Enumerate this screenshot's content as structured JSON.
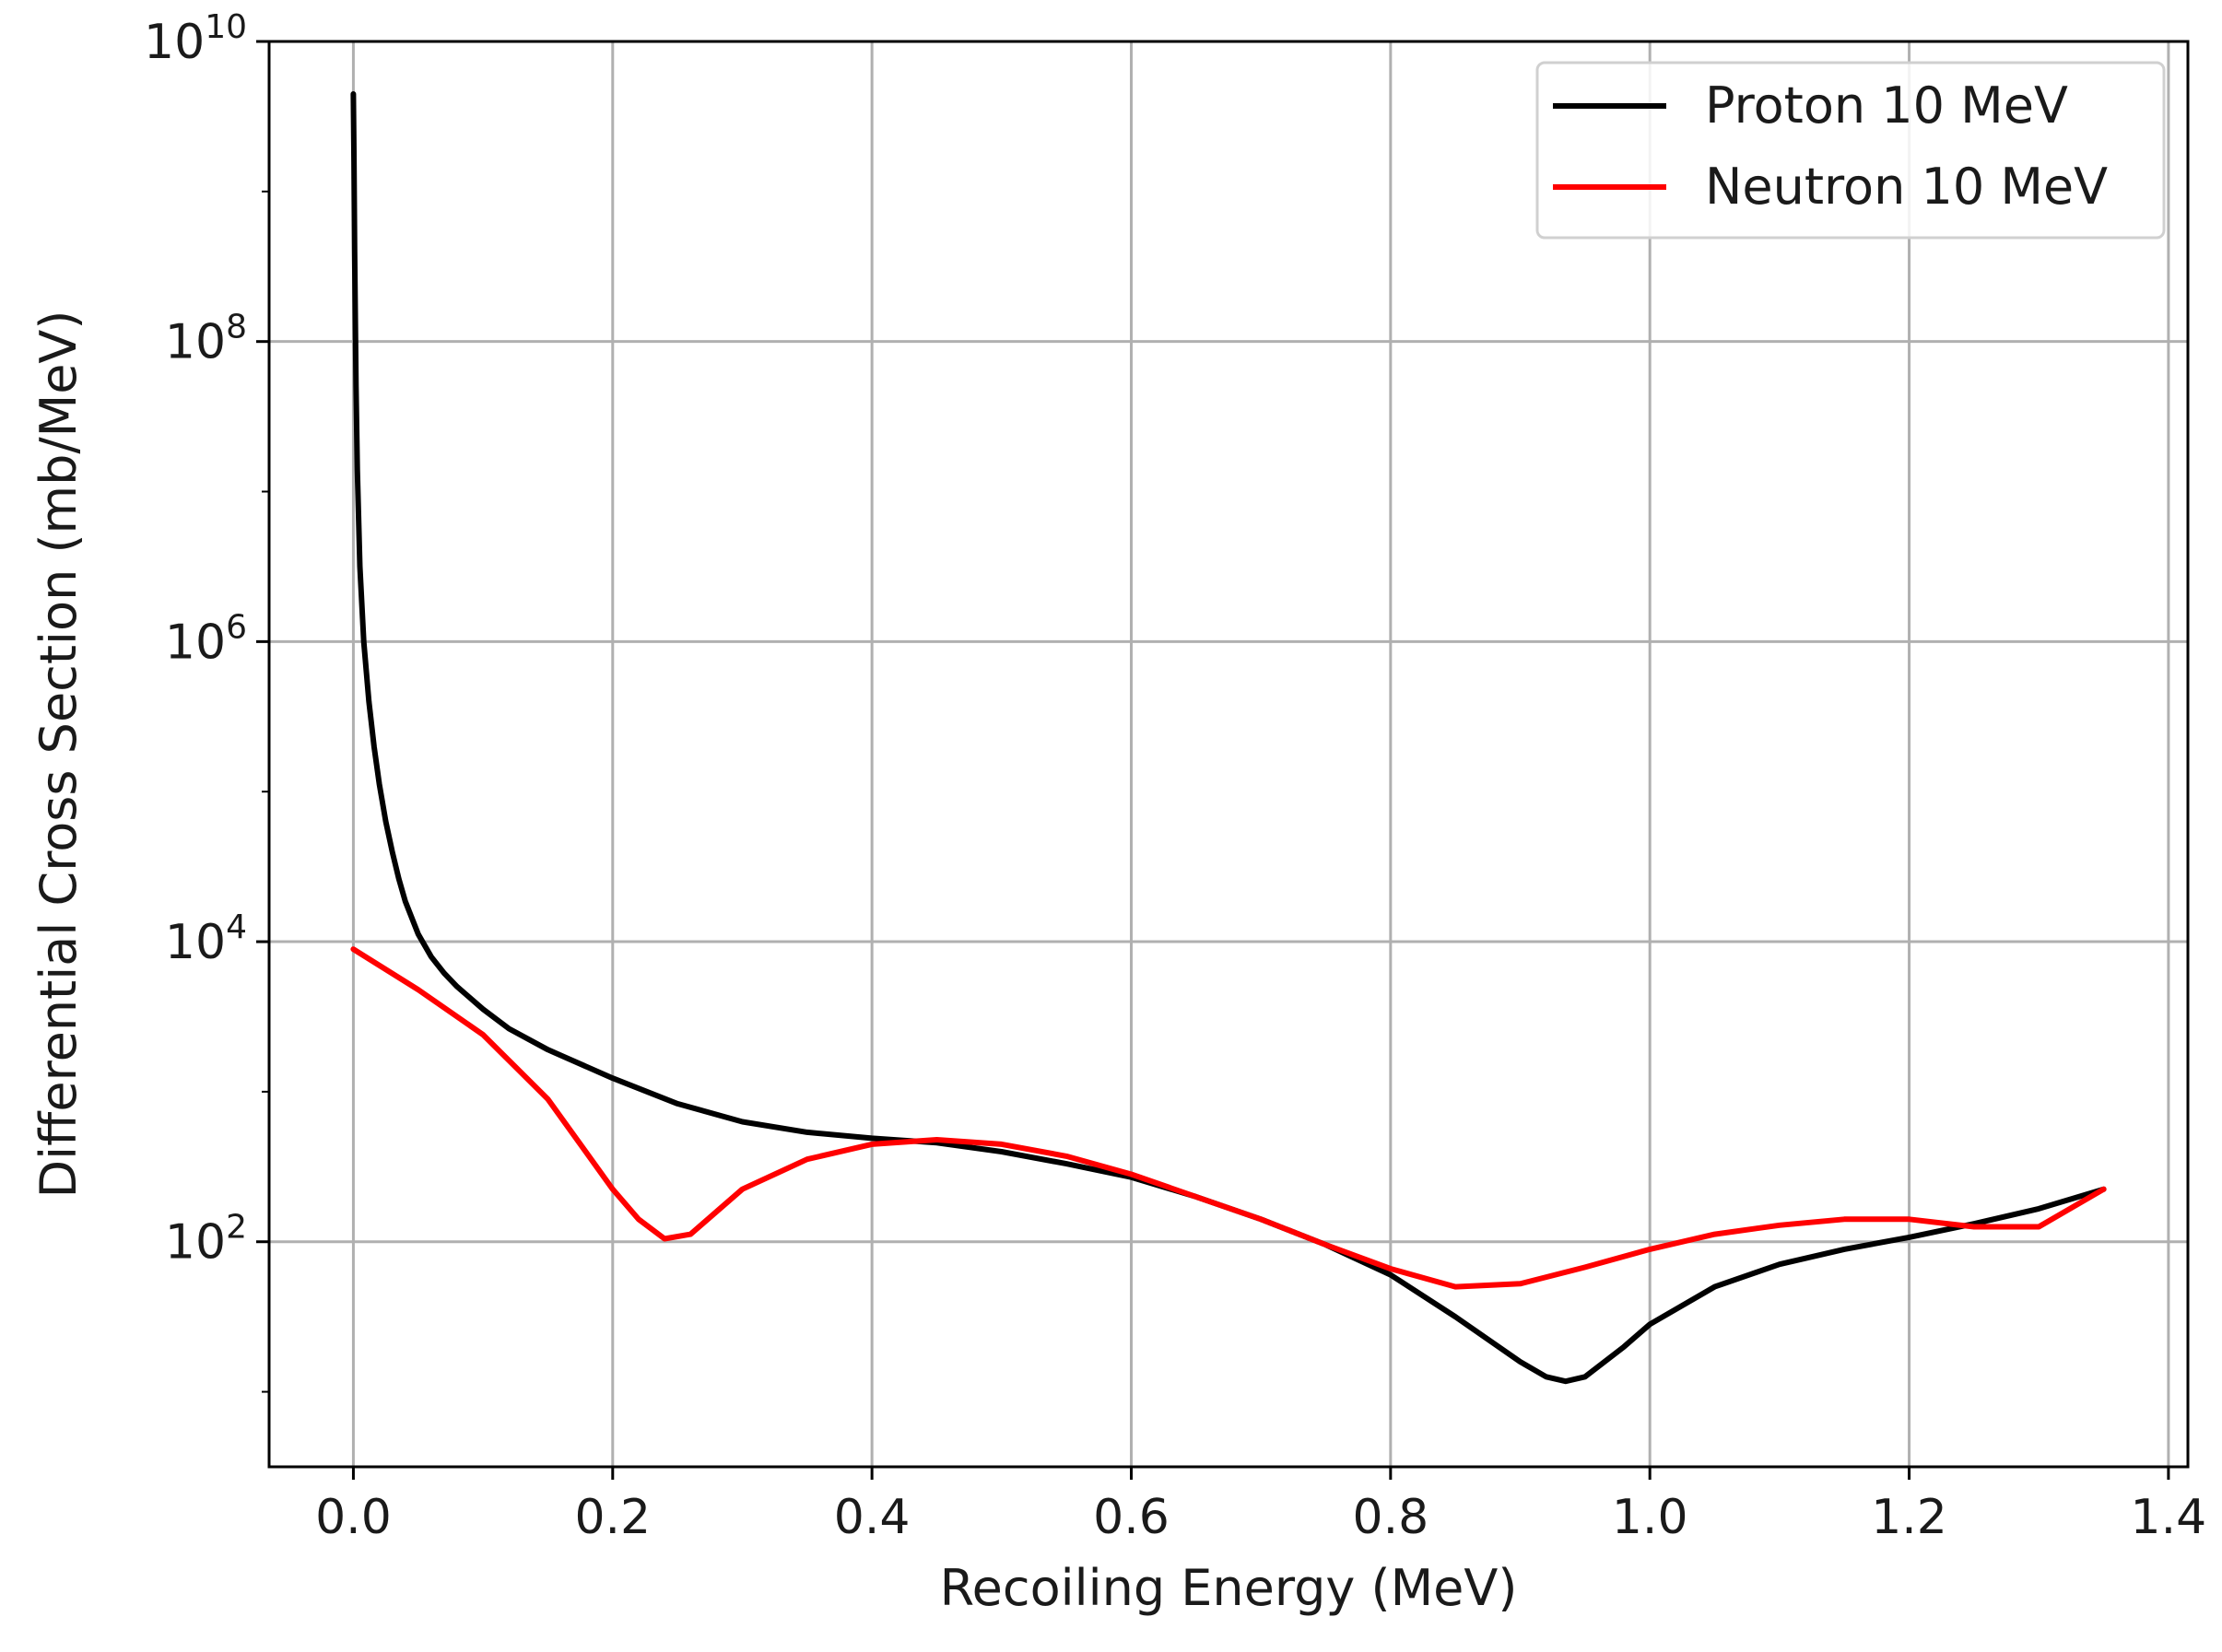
{
  "chart_data": {
    "type": "line",
    "title": "",
    "xlabel": "Recoiling Energy (MeV)",
    "ylabel": "Differential Cross Section (mb/MeV)",
    "xlim": [
      -0.065,
      1.415
    ],
    "ylim": [
      0.5,
      10.0
    ],
    "yscale": "log",
    "grid": true,
    "legend_position": "top-right",
    "x_ticks": [
      {
        "value": 0.0,
        "label": "0.0"
      },
      {
        "value": 0.2,
        "label": "0.2"
      },
      {
        "value": 0.4,
        "label": "0.4"
      },
      {
        "value": 0.6,
        "label": "0.6"
      },
      {
        "value": 0.8,
        "label": "0.8"
      },
      {
        "value": 1.0,
        "label": "1.0"
      },
      {
        "value": 1.2,
        "label": "1.2"
      },
      {
        "value": 1.4,
        "label": "1.4"
      }
    ],
    "y_ticks": [
      {
        "exponent": 2,
        "base": "10",
        "sup": "2"
      },
      {
        "exponent": 4,
        "base": "10",
        "sup": "4"
      },
      {
        "exponent": 6,
        "base": "10",
        "sup": "6"
      },
      {
        "exponent": 8,
        "base": "10",
        "sup": "8"
      },
      {
        "exponent": 10,
        "base": "10",
        "sup": "10"
      }
    ],
    "series": [
      {
        "name": "Proton 10 MeV",
        "color": "#000000",
        "x": [
          0.0,
          0.0005,
          0.001,
          0.002,
          0.003,
          0.005,
          0.008,
          0.012,
          0.016,
          0.02,
          0.025,
          0.03,
          0.035,
          0.04,
          0.05,
          0.06,
          0.07,
          0.08,
          0.1,
          0.12,
          0.15,
          0.2,
          0.25,
          0.3,
          0.35,
          0.4,
          0.45,
          0.5,
          0.55,
          0.6,
          0.65,
          0.7,
          0.75,
          0.8,
          0.85,
          0.9,
          0.92,
          0.935,
          0.95,
          0.98,
          1.0,
          1.05,
          1.1,
          1.15,
          1.2,
          1.25,
          1.3,
          1.35
        ],
        "y_log10": [
          9.65,
          9.2,
          8.6,
          7.7,
          7.15,
          6.5,
          6.0,
          5.6,
          5.3,
          5.05,
          4.8,
          4.6,
          4.42,
          4.27,
          4.05,
          3.9,
          3.79,
          3.7,
          3.55,
          3.42,
          3.28,
          3.09,
          2.92,
          2.8,
          2.73,
          2.69,
          2.66,
          2.6,
          2.52,
          2.43,
          2.3,
          2.15,
          1.98,
          1.78,
          1.5,
          1.2,
          1.1,
          1.07,
          1.1,
          1.3,
          1.45,
          1.7,
          1.85,
          1.95,
          2.03,
          2.12,
          2.22,
          2.35
        ]
      },
      {
        "name": "Neutron 10 MeV",
        "color": "#ff0000",
        "x": [
          0.0,
          0.05,
          0.1,
          0.15,
          0.2,
          0.22,
          0.24,
          0.26,
          0.28,
          0.3,
          0.35,
          0.4,
          0.45,
          0.5,
          0.55,
          0.6,
          0.65,
          0.7,
          0.75,
          0.8,
          0.85,
          0.9,
          0.95,
          1.0,
          1.05,
          1.1,
          1.15,
          1.2,
          1.25,
          1.3,
          1.35
        ],
        "y_log10": [
          3.95,
          3.68,
          3.38,
          2.95,
          2.35,
          2.15,
          2.02,
          2.05,
          2.2,
          2.35,
          2.55,
          2.65,
          2.68,
          2.65,
          2.57,
          2.45,
          2.3,
          2.15,
          1.98,
          1.82,
          1.7,
          1.72,
          1.83,
          1.95,
          2.05,
          2.11,
          2.15,
          2.15,
          2.1,
          2.1,
          2.35
        ]
      }
    ]
  }
}
